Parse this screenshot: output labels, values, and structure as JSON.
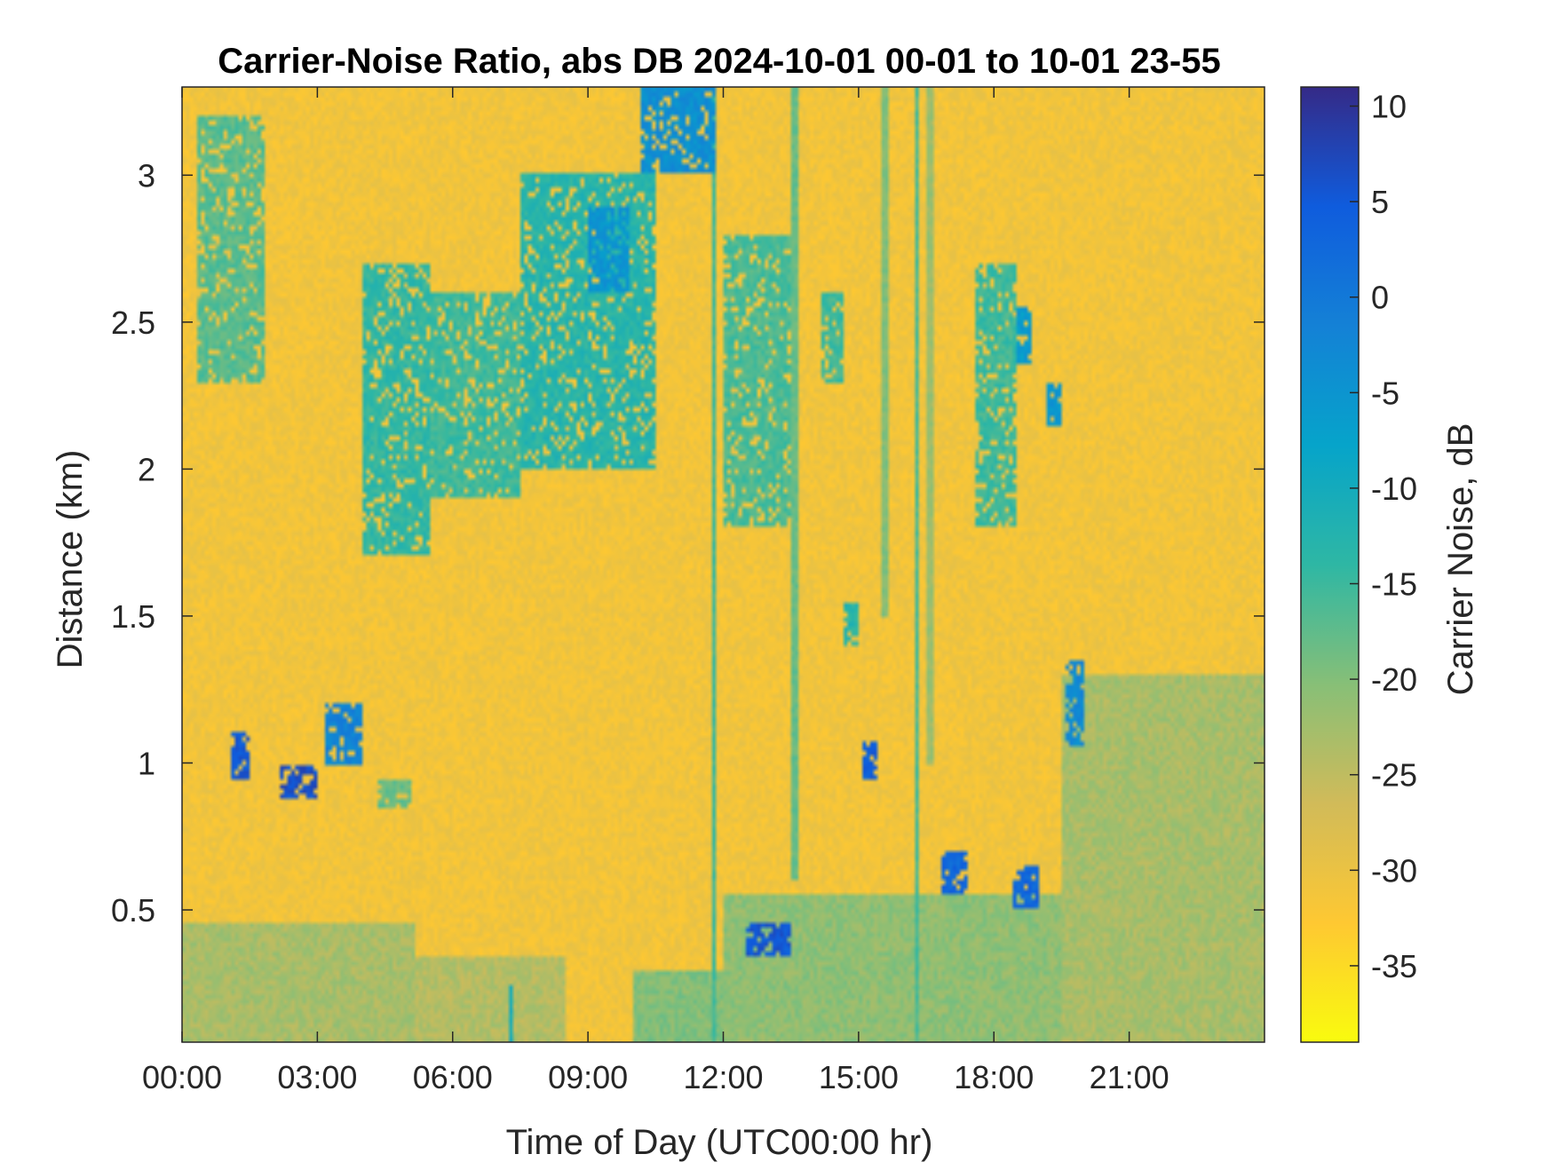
{
  "chart_data": {
    "type": "heatmap",
    "title": "Carrier-Noise Ratio, abs DB 2024-10-01 00-01 to 10-01 23-55",
    "xlabel": "Time of Day (UTC00:00 hr)",
    "ylabel": "Distance (km)",
    "colorbar_label": "Carrier Noise, dB",
    "x_unit": "hours",
    "xlim": [
      0,
      24
    ],
    "ylim": [
      0.05,
      3.3
    ],
    "clim": [
      -39,
      11
    ],
    "x_ticks": [
      {
        "value": 0,
        "label": "00:00"
      },
      {
        "value": 3,
        "label": "03:00"
      },
      {
        "value": 6,
        "label": "06:00"
      },
      {
        "value": 9,
        "label": "09:00"
      },
      {
        "value": 12,
        "label": "12:00"
      },
      {
        "value": 15,
        "label": "15:00"
      },
      {
        "value": 18,
        "label": "18:00"
      },
      {
        "value": 21,
        "label": "21:00"
      }
    ],
    "y_ticks": [
      {
        "value": 0.5,
        "label": "0.5"
      },
      {
        "value": 1,
        "label": "1"
      },
      {
        "value": 1.5,
        "label": "1.5"
      },
      {
        "value": 2,
        "label": "2"
      },
      {
        "value": 2.5,
        "label": "2.5"
      },
      {
        "value": 3,
        "label": "3"
      }
    ],
    "colorbar_ticks": [
      {
        "value": 10,
        "label": "10"
      },
      {
        "value": 5,
        "label": "5"
      },
      {
        "value": 0,
        "label": "0"
      },
      {
        "value": -5,
        "label": "-5"
      },
      {
        "value": -10,
        "label": "-10"
      },
      {
        "value": -15,
        "label": "-15"
      },
      {
        "value": -20,
        "label": "-20"
      },
      {
        "value": -25,
        "label": "-25"
      },
      {
        "value": -30,
        "label": "-30"
      },
      {
        "value": -35,
        "label": "-35"
      }
    ],
    "colormap": "parula",
    "colors": [
      "#352a87",
      "#0f5cdd",
      "#1481d6",
      "#06a4ca",
      "#2eb7a4",
      "#87bf77",
      "#d1bb59",
      "#fec832",
      "#f9fb0e"
    ],
    "background_level_db": -31,
    "features": [
      {
        "kind": "aerosol_layer",
        "t_start": 0.0,
        "t_end": 5.2,
        "z_start": 0.05,
        "z_end": 0.45,
        "db": -23
      },
      {
        "kind": "aerosol_layer",
        "t_start": 5.2,
        "t_end": 8.5,
        "z_start": 0.05,
        "z_end": 0.35,
        "db": -24
      },
      {
        "kind": "aerosol_layer",
        "t_start": 10.0,
        "t_end": 12.0,
        "z_start": 0.05,
        "z_end": 0.3,
        "db": -20
      },
      {
        "kind": "aerosol_layer",
        "t_start": 12.0,
        "t_end": 19.5,
        "z_start": 0.05,
        "z_end": 0.55,
        "db": -21
      },
      {
        "kind": "aerosol_layer",
        "t_start": 19.5,
        "t_end": 24.0,
        "z_start": 0.05,
        "z_end": 1.3,
        "db": -23
      },
      {
        "kind": "cloud",
        "t_start": 1.1,
        "t_end": 1.5,
        "z_start": 0.95,
        "z_end": 1.1,
        "db": 5
      },
      {
        "kind": "cloud",
        "t_start": 2.2,
        "t_end": 3.0,
        "z_start": 0.88,
        "z_end": 1.0,
        "db": 6
      },
      {
        "kind": "cloud",
        "t_start": 3.2,
        "t_end": 4.0,
        "z_start": 1.0,
        "z_end": 1.2,
        "db": -2
      },
      {
        "kind": "cloud",
        "t_start": 12.5,
        "t_end": 13.5,
        "z_start": 0.35,
        "z_end": 0.45,
        "db": 5
      },
      {
        "kind": "cloud",
        "t_start": 15.1,
        "t_end": 15.4,
        "z_start": 0.95,
        "z_end": 1.08,
        "db": 4
      },
      {
        "kind": "cloud",
        "t_start": 16.8,
        "t_end": 17.4,
        "z_start": 0.55,
        "z_end": 0.7,
        "db": 3
      },
      {
        "kind": "cloud",
        "t_start": 18.4,
        "t_end": 19.0,
        "z_start": 0.5,
        "z_end": 0.65,
        "db": 3
      },
      {
        "kind": "cloud",
        "t_start": 19.6,
        "t_end": 20.0,
        "z_start": 1.05,
        "z_end": 1.35,
        "db": -3
      },
      {
        "kind": "cloud",
        "t_start": 10.2,
        "t_end": 11.8,
        "z_start": 3.0,
        "z_end": 3.3,
        "db": -4
      },
      {
        "kind": "cloud",
        "t_start": 9.0,
        "t_end": 9.9,
        "z_start": 2.6,
        "z_end": 2.9,
        "db": -5
      },
      {
        "kind": "cloud",
        "t_start": 18.5,
        "t_end": 18.8,
        "z_start": 2.35,
        "z_end": 2.55,
        "db": -6
      },
      {
        "kind": "cloud",
        "t_start": 19.2,
        "t_end": 19.5,
        "z_start": 2.15,
        "z_end": 2.3,
        "db": -5
      },
      {
        "kind": "cloud",
        "t_start": 0.3,
        "t_end": 1.8,
        "z_start": 2.3,
        "z_end": 3.2,
        "db": -17
      },
      {
        "kind": "cloud",
        "t_start": 4.0,
        "t_end": 5.5,
        "z_start": 1.7,
        "z_end": 2.7,
        "db": -14
      },
      {
        "kind": "cloud",
        "t_start": 5.5,
        "t_end": 7.5,
        "z_start": 1.9,
        "z_end": 2.6,
        "db": -15
      },
      {
        "kind": "cloud",
        "t_start": 7.5,
        "t_end": 10.5,
        "z_start": 2.0,
        "z_end": 3.0,
        "db": -13
      },
      {
        "kind": "cloud",
        "t_start": 12.0,
        "t_end": 13.5,
        "z_start": 1.8,
        "z_end": 2.8,
        "db": -16
      },
      {
        "kind": "cloud",
        "t_start": 14.2,
        "t_end": 14.7,
        "z_start": 2.3,
        "z_end": 2.6,
        "db": -15
      },
      {
        "kind": "cloud",
        "t_start": 17.6,
        "t_end": 18.5,
        "z_start": 1.8,
        "z_end": 2.7,
        "db": -15
      },
      {
        "kind": "cloud",
        "t_start": 4.3,
        "t_end": 5.1,
        "z_start": 0.85,
        "z_end": 0.95,
        "db": -18
      },
      {
        "kind": "cloud",
        "t_start": 14.7,
        "t_end": 15.0,
        "z_start": 1.4,
        "z_end": 1.55,
        "db": -13
      },
      {
        "kind": "streak",
        "t": 7.3,
        "z_start": 0.05,
        "z_end": 0.25,
        "db": -10
      },
      {
        "kind": "streak",
        "t": 11.8,
        "z_start": 0.05,
        "z_end": 3.3,
        "db": -15
      },
      {
        "kind": "streak",
        "t": 16.3,
        "z_start": 0.05,
        "z_end": 3.3,
        "db": -16
      },
      {
        "kind": "streak",
        "t": 13.6,
        "z_start": 0.6,
        "z_end": 3.3,
        "db": -18
      },
      {
        "kind": "streak",
        "t": 15.6,
        "z_start": 1.5,
        "z_end": 3.3,
        "db": -20
      },
      {
        "kind": "streak",
        "t": 16.6,
        "z_start": 1.0,
        "z_end": 3.3,
        "db": -22
      }
    ]
  }
}
